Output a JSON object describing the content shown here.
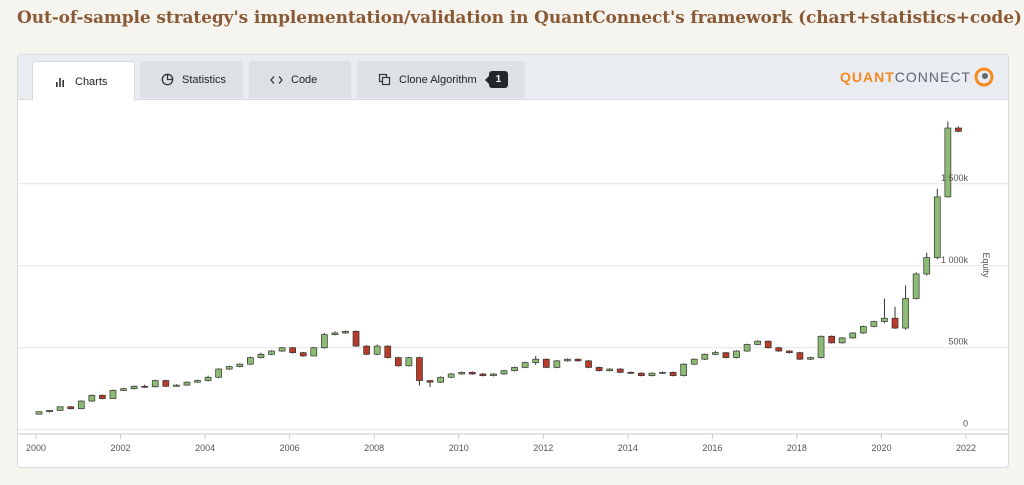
{
  "page": {
    "title": "Out-of-sample strategy's implementation/validation in QuantConnect's framework (chart+statistics+code)"
  },
  "tabs": [
    {
      "label": "Charts",
      "icon": "bar-chart-icon",
      "active": true
    },
    {
      "label": "Statistics",
      "icon": "pie-chart-icon",
      "active": false
    },
    {
      "label": "Code",
      "icon": "code-icon",
      "active": false
    },
    {
      "label": "Clone Algorithm",
      "icon": "clone-icon",
      "active": false,
      "badge": "1"
    }
  ],
  "logo": {
    "part1": "QUANT",
    "part2": "CONNECT",
    "icon": "quantconnect-logo-icon"
  },
  "colors": {
    "up": "#8dbb74",
    "down": "#b83a2a",
    "title": "#8a5a36",
    "accent": "#f6891f"
  },
  "chart_data": {
    "type": "candlestick",
    "ylabel": "Equity",
    "x_ticks": [
      "2000",
      "2002",
      "2004",
      "2006",
      "2008",
      "2010",
      "2012",
      "2014",
      "2016",
      "2018",
      "2020",
      "2022"
    ],
    "y_ticks": [
      {
        "value": 0,
        "label": "0"
      },
      {
        "value": 500,
        "label": "500k"
      },
      {
        "value": 1000,
        "label": "1 000k"
      },
      {
        "value": 1500,
        "label": "1 500k"
      }
    ],
    "ylim": [
      -20,
      1950
    ],
    "xlim": [
      2000,
      2022
    ],
    "grid": true,
    "candles": [
      [
        2000.0,
        95,
        110,
        92,
        112
      ],
      [
        2000.25,
        110,
        118,
        105,
        120
      ],
      [
        2000.5,
        118,
        140,
        115,
        142
      ],
      [
        2000.75,
        140,
        128,
        124,
        145
      ],
      [
        2001.0,
        128,
        175,
        125,
        180
      ],
      [
        2001.25,
        175,
        210,
        170,
        215
      ],
      [
        2001.5,
        210,
        190,
        185,
        215
      ],
      [
        2001.75,
        190,
        240,
        188,
        245
      ],
      [
        2002.0,
        240,
        250,
        236,
        255
      ],
      [
        2002.25,
        250,
        265,
        245,
        270
      ],
      [
        2002.5,
        265,
        262,
        255,
        275
      ],
      [
        2002.75,
        262,
        300,
        258,
        305
      ],
      [
        2003.0,
        300,
        265,
        260,
        305
      ],
      [
        2003.25,
        265,
        272,
        262,
        278
      ],
      [
        2003.5,
        272,
        290,
        268,
        295
      ],
      [
        2003.75,
        290,
        300,
        286,
        305
      ],
      [
        2004.0,
        300,
        320,
        295,
        330
      ],
      [
        2004.25,
        320,
        370,
        315,
        375
      ],
      [
        2004.5,
        370,
        385,
        365,
        390
      ],
      [
        2004.75,
        385,
        400,
        380,
        405
      ],
      [
        2005.0,
        400,
        440,
        395,
        445
      ],
      [
        2005.25,
        440,
        460,
        435,
        470
      ],
      [
        2005.5,
        460,
        480,
        455,
        485
      ],
      [
        2005.75,
        480,
        500,
        475,
        505
      ],
      [
        2006.0,
        500,
        470,
        465,
        505
      ],
      [
        2006.25,
        470,
        450,
        445,
        475
      ],
      [
        2006.5,
        450,
        500,
        448,
        505
      ],
      [
        2006.75,
        500,
        580,
        495,
        590
      ],
      [
        2007.0,
        580,
        590,
        575,
        600
      ],
      [
        2007.25,
        590,
        600,
        585,
        605
      ],
      [
        2007.5,
        600,
        510,
        505,
        605
      ],
      [
        2007.75,
        510,
        460,
        455,
        515
      ],
      [
        2008.0,
        460,
        510,
        455,
        520
      ],
      [
        2008.25,
        510,
        440,
        435,
        515
      ],
      [
        2008.5,
        440,
        390,
        385,
        445
      ],
      [
        2008.75,
        390,
        440,
        385,
        445
      ],
      [
        2009.0,
        440,
        300,
        270,
        445
      ],
      [
        2009.25,
        300,
        290,
        260,
        305
      ],
      [
        2009.5,
        290,
        320,
        285,
        325
      ],
      [
        2009.75,
        320,
        340,
        315,
        345
      ],
      [
        2010.0,
        340,
        350,
        335,
        355
      ],
      [
        2010.25,
        350,
        340,
        335,
        355
      ],
      [
        2010.5,
        340,
        330,
        325,
        345
      ],
      [
        2010.75,
        330,
        340,
        325,
        345
      ],
      [
        2011.0,
        340,
        360,
        335,
        365
      ],
      [
        2011.25,
        360,
        380,
        355,
        385
      ],
      [
        2011.5,
        380,
        410,
        375,
        415
      ],
      [
        2011.75,
        410,
        430,
        395,
        450
      ],
      [
        2012.0,
        430,
        380,
        375,
        435
      ],
      [
        2012.25,
        380,
        420,
        375,
        425
      ],
      [
        2012.5,
        420,
        430,
        415,
        435
      ],
      [
        2012.75,
        430,
        420,
        415,
        435
      ],
      [
        2013.0,
        420,
        380,
        375,
        425
      ],
      [
        2013.25,
        380,
        360,
        355,
        385
      ],
      [
        2013.5,
        360,
        370,
        355,
        375
      ],
      [
        2013.75,
        370,
        350,
        345,
        375
      ],
      [
        2014.0,
        350,
        345,
        340,
        355
      ],
      [
        2014.25,
        345,
        330,
        325,
        350
      ],
      [
        2014.5,
        330,
        345,
        325,
        350
      ],
      [
        2014.75,
        345,
        350,
        340,
        355
      ],
      [
        2015.0,
        350,
        330,
        325,
        355
      ],
      [
        2015.25,
        330,
        400,
        325,
        405
      ],
      [
        2015.5,
        400,
        430,
        395,
        435
      ],
      [
        2015.75,
        430,
        460,
        425,
        465
      ],
      [
        2016.0,
        460,
        470,
        455,
        480
      ],
      [
        2016.25,
        470,
        440,
        435,
        475
      ],
      [
        2016.5,
        440,
        480,
        435,
        485
      ],
      [
        2016.75,
        480,
        520,
        475,
        525
      ],
      [
        2017.0,
        520,
        540,
        515,
        545
      ],
      [
        2017.25,
        540,
        500,
        495,
        545
      ],
      [
        2017.5,
        500,
        480,
        475,
        505
      ],
      [
        2017.75,
        480,
        470,
        465,
        485
      ],
      [
        2018.0,
        470,
        430,
        425,
        475
      ],
      [
        2018.25,
        430,
        440,
        425,
        445
      ],
      [
        2018.5,
        440,
        570,
        435,
        575
      ],
      [
        2018.75,
        570,
        530,
        525,
        575
      ],
      [
        2019.0,
        530,
        560,
        525,
        565
      ],
      [
        2019.25,
        560,
        590,
        555,
        595
      ],
      [
        2019.5,
        590,
        630,
        585,
        635
      ],
      [
        2019.75,
        630,
        660,
        625,
        665
      ],
      [
        2020.0,
        660,
        680,
        650,
        800
      ],
      [
        2020.25,
        680,
        620,
        615,
        750
      ],
      [
        2020.5,
        620,
        800,
        610,
        880
      ],
      [
        2020.75,
        800,
        950,
        795,
        960
      ],
      [
        2021.0,
        950,
        1050,
        940,
        1080
      ],
      [
        2021.25,
        1050,
        1420,
        1040,
        1470
      ],
      [
        2021.5,
        1420,
        1840,
        1415,
        1880
      ],
      [
        2021.75,
        1840,
        1820,
        1815,
        1850
      ]
    ]
  }
}
